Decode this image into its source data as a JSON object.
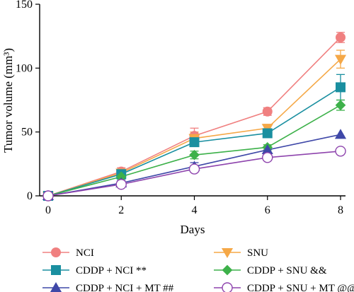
{
  "chart_data": {
    "type": "line",
    "xlabel": "Days",
    "ylabel": "Tumor volume (mm³)",
    "x": [
      0,
      2,
      4,
      6,
      8
    ],
    "xlim": [
      0,
      8
    ],
    "ylim": [
      0,
      150
    ],
    "xticks": [
      "0",
      "2",
      "4",
      "6",
      "8"
    ],
    "yticks": [
      "0",
      "50",
      "100",
      "150"
    ],
    "grid": false,
    "legend_position": "bottom",
    "series": [
      {
        "name": "NCI",
        "marker": "circle",
        "filled": true,
        "color": "#F08080",
        "values": [
          0,
          19,
          47,
          66,
          124
        ],
        "errors": [
          0,
          3,
          6,
          3,
          4
        ]
      },
      {
        "name": "SNU",
        "marker": "triangle-down",
        "filled": true,
        "color": "#F5A847",
        "values": [
          0,
          18,
          45,
          53,
          107
        ],
        "errors": [
          0,
          3,
          5,
          3,
          7
        ]
      },
      {
        "name": "CDDP + NCI **",
        "marker": "square",
        "filled": true,
        "color": "#1A8FA0",
        "values": [
          0,
          17,
          42,
          49,
          85
        ],
        "errors": [
          0,
          2,
          3,
          3,
          10
        ]
      },
      {
        "name": "CDDP + SNU &&",
        "marker": "diamond",
        "filled": true,
        "color": "#3DB14A",
        "values": [
          0,
          15,
          32,
          38,
          71
        ],
        "errors": [
          0,
          2,
          3,
          2,
          4
        ]
      },
      {
        "name": "CDDP + NCI + MT ##",
        "marker": "triangle-up",
        "filled": true,
        "color": "#3F48A8",
        "values": [
          0,
          10,
          23,
          36,
          48
        ],
        "errors": [
          0,
          2,
          3,
          2,
          0
        ]
      },
      {
        "name": "CDDP + SNU + MT @@",
        "marker": "circle",
        "filled": false,
        "color": "#8E44AD",
        "values": [
          0,
          9,
          21,
          30,
          35
        ],
        "errors": [
          0,
          1,
          2,
          2,
          0
        ]
      }
    ]
  }
}
